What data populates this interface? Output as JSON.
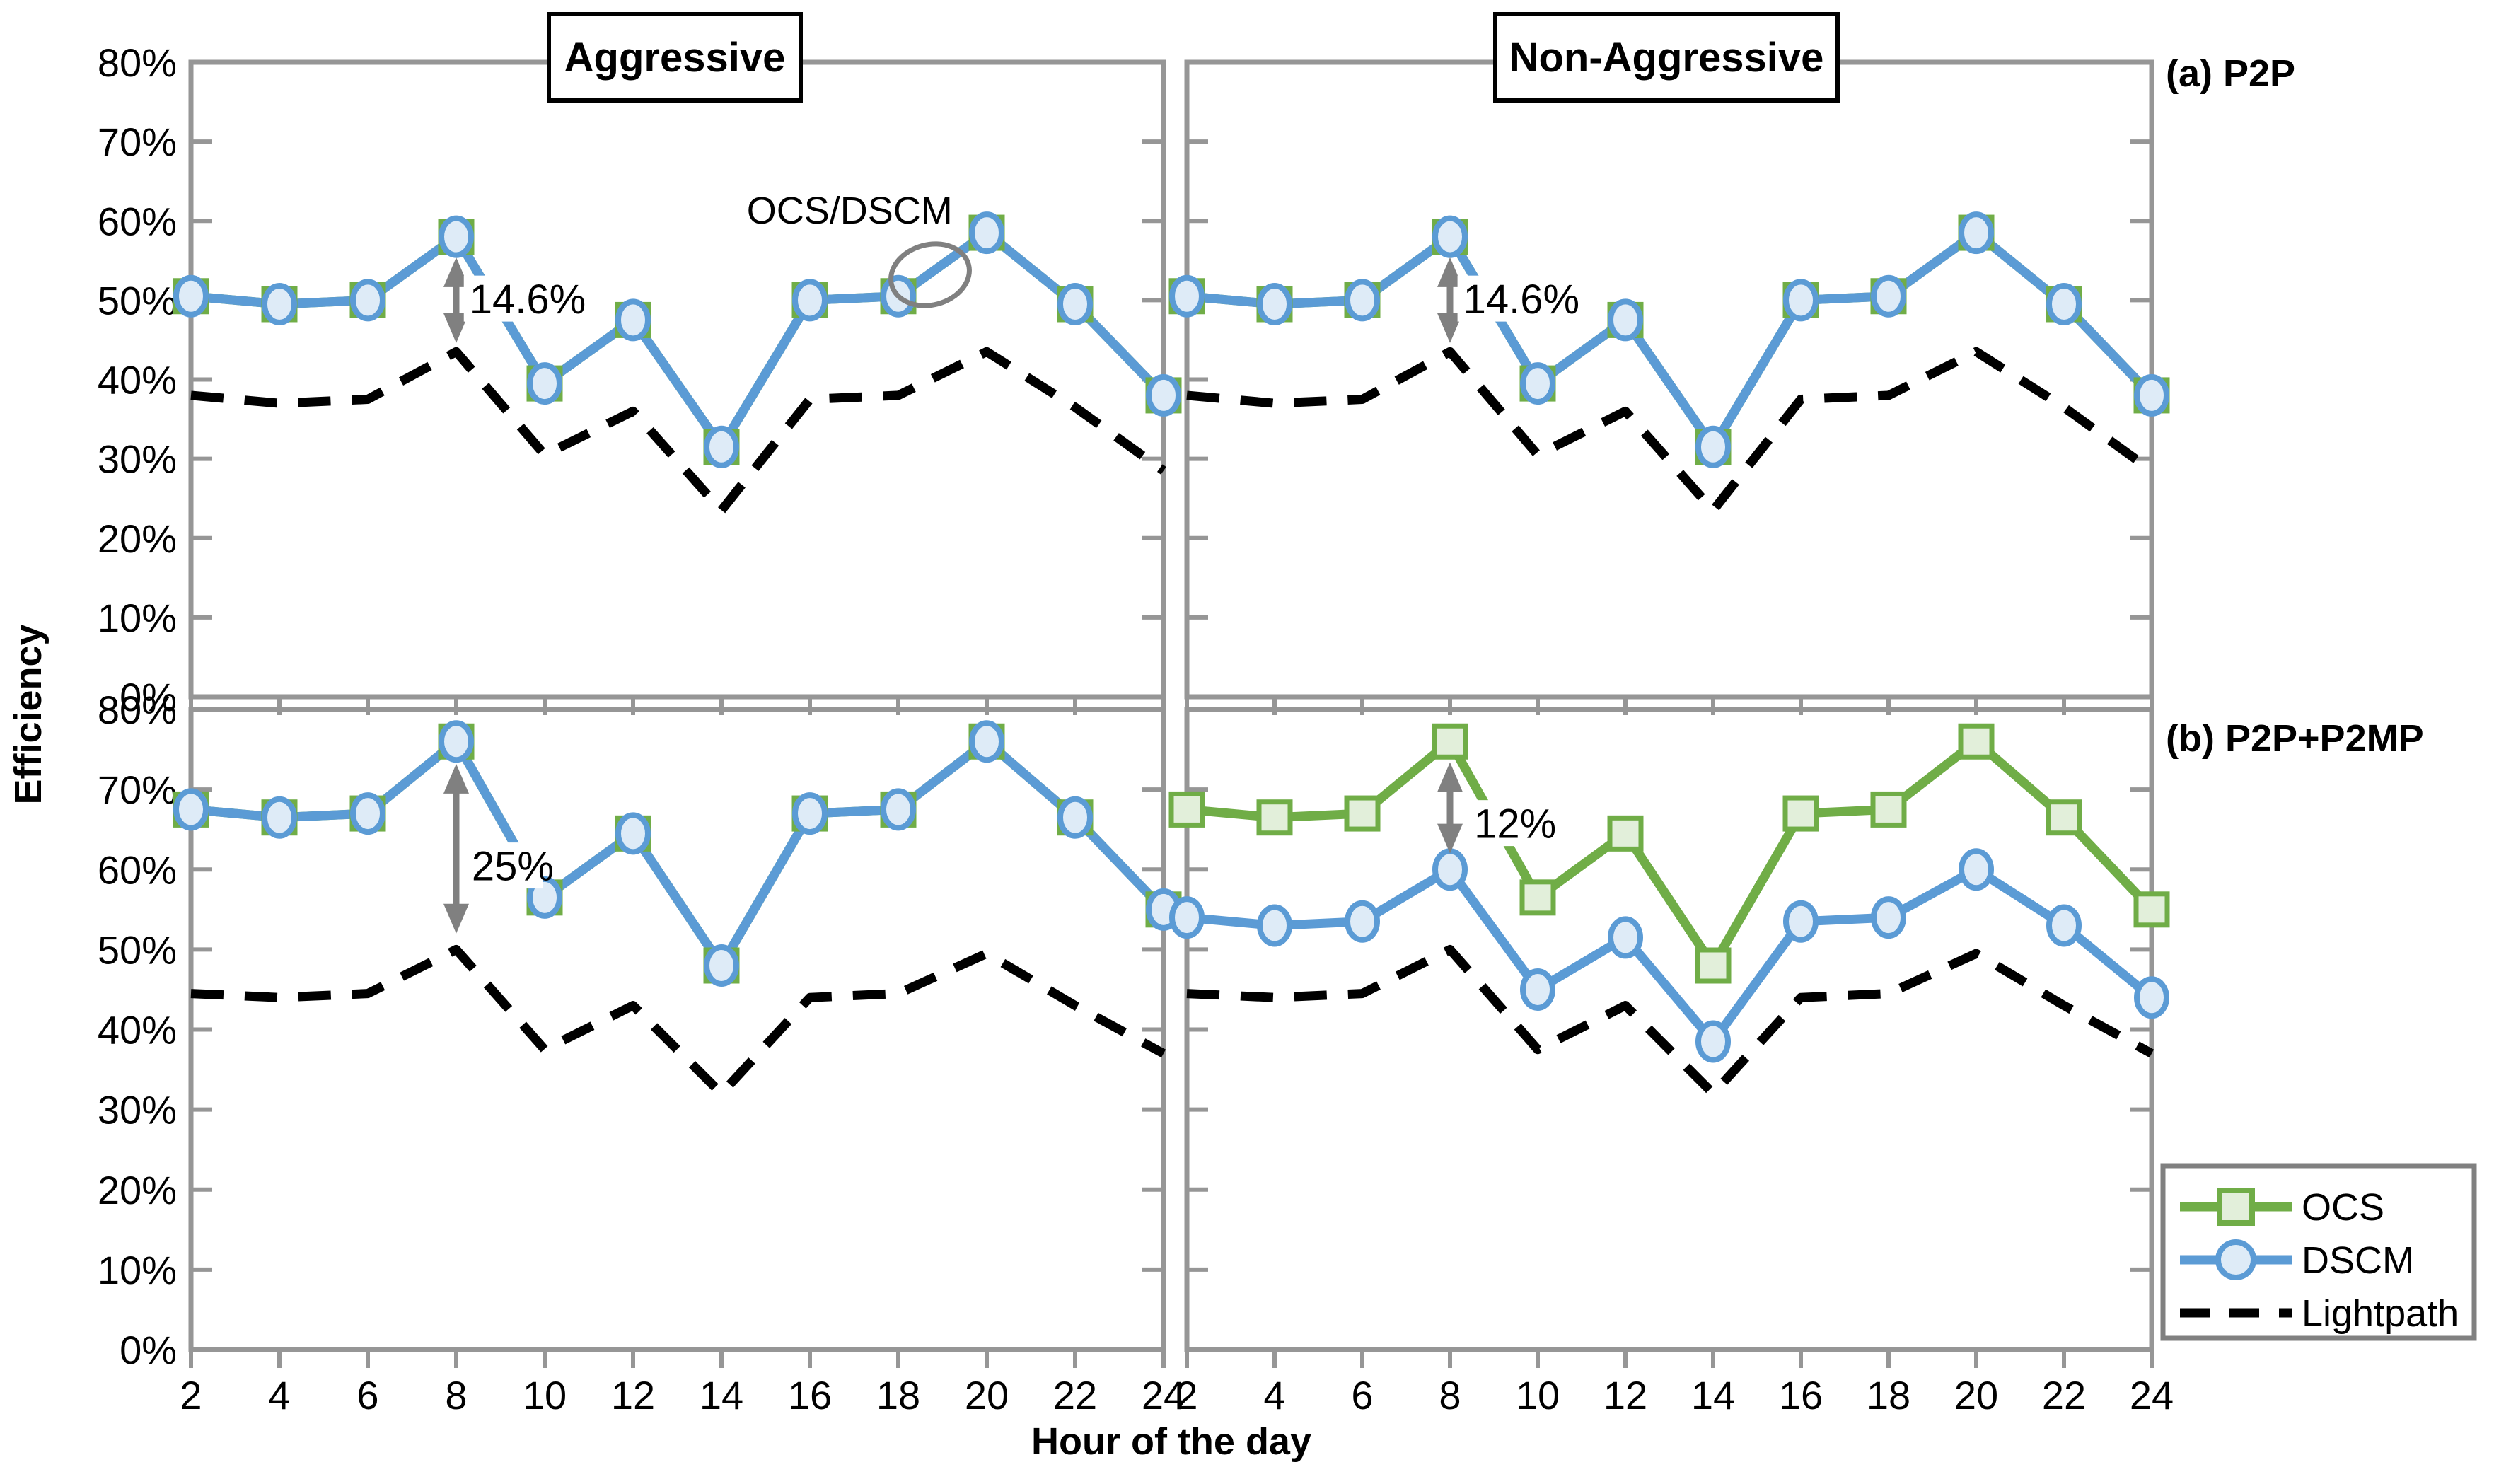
{
  "figure": {
    "ylabel": "Efficiency",
    "xlabel": "Hour of the day",
    "column_titles": [
      "Aggressive",
      "Non-Aggressive"
    ],
    "row_labels": [
      "(a) P2P",
      "(b) P2P+P2MP"
    ]
  },
  "colors": {
    "ocs": "#70AD47",
    "ocs_fill": "#E2EFDA",
    "dscm": "#5B9BD5",
    "dscm_fill": "#DEEBF7",
    "lightpath": "#000000",
    "axis": "#969696",
    "annotation": "#808080"
  },
  "legend": {
    "items": [
      {
        "label": "OCS",
        "marker": "square"
      },
      {
        "label": "DSCM",
        "marker": "circle"
      },
      {
        "label": "Lightpath",
        "marker": "dash"
      }
    ]
  },
  "chart_data": [
    {
      "type": "line",
      "id": "p2p-aggressive",
      "row": 0,
      "col": 0,
      "title": "Aggressive",
      "row_label": "(a) P2P",
      "x": [
        2,
        4,
        6,
        8,
        10,
        12,
        14,
        16,
        18,
        20,
        22,
        24
      ],
      "xlim": [
        2,
        24
      ],
      "ylim": [
        0,
        80
      ],
      "y_tick_labels": [
        "80%",
        "70%",
        "60%",
        "50%",
        "40%",
        "30%",
        "20%",
        "10%",
        "0%"
      ],
      "show_x_labels": false,
      "series": [
        {
          "name": "OCS",
          "marker": "square",
          "dashed": false,
          "values": [
            50.5,
            49.5,
            50,
            58,
            39.5,
            47.5,
            31.5,
            50,
            50.5,
            58.5,
            49.5,
            38
          ]
        },
        {
          "name": "DSCM",
          "marker": "circle",
          "dashed": false,
          "values": [
            50.5,
            49.5,
            50,
            58,
            39.5,
            47.5,
            31.5,
            50,
            50.5,
            58.5,
            49.5,
            38
          ]
        },
        {
          "name": "Lightpath",
          "marker": "none",
          "dashed": true,
          "values": [
            38,
            37,
            37.5,
            43.5,
            30.5,
            36,
            23.5,
            37.5,
            38,
            43.5,
            36.5,
            28.5
          ]
        }
      ],
      "annotations": [
        {
          "type": "vline-arrow",
          "x": 8,
          "from": 55.4,
          "to": 44.6
        },
        {
          "type": "label",
          "x": 8.3,
          "y": 50.2,
          "text": "14.6%",
          "bg": true,
          "anchor": "start",
          "size": 58
        },
        {
          "type": "label",
          "x": 16.9,
          "y": 61.4,
          "text": "OCS/DSCM",
          "bg": false,
          "anchor": "middle",
          "size": 54,
          "color": "#1a1a1a"
        },
        {
          "type": "ellipse",
          "x": 18.72,
          "y": 53.2,
          "rx": 0.45,
          "ry": 3.8,
          "rotate": -15
        }
      ]
    },
    {
      "type": "line",
      "id": "p2p-non-aggressive",
      "row": 0,
      "col": 1,
      "title": "Non-Aggressive",
      "row_label": "(a) P2P",
      "x": [
        2,
        4,
        6,
        8,
        10,
        12,
        14,
        16,
        18,
        20,
        22,
        24
      ],
      "xlim": [
        2,
        24
      ],
      "ylim": [
        0,
        80
      ],
      "y_tick_labels": [
        "80%",
        "70%",
        "60%",
        "50%",
        "40%",
        "30%",
        "20%",
        "10%",
        "0%"
      ],
      "show_x_labels": false,
      "series": [
        {
          "name": "OCS",
          "marker": "square",
          "dashed": false,
          "values": [
            50.5,
            49.5,
            50,
            58,
            39.5,
            47.5,
            31.5,
            50,
            50.5,
            58.5,
            49.5,
            38
          ]
        },
        {
          "name": "DSCM",
          "marker": "circle",
          "dashed": false,
          "values": [
            50.5,
            49.5,
            50,
            58,
            39.5,
            47.5,
            31.5,
            50,
            50.5,
            58.5,
            49.5,
            38
          ]
        },
        {
          "name": "Lightpath",
          "marker": "none",
          "dashed": true,
          "values": [
            38,
            37,
            37.5,
            43.5,
            30.5,
            36,
            23.5,
            37.5,
            38,
            43.5,
            36.5,
            28.5
          ]
        }
      ],
      "annotations": [
        {
          "type": "vline-arrow",
          "x": 8,
          "from": 55.4,
          "to": 44.6
        },
        {
          "type": "label",
          "x": 8.3,
          "y": 50.2,
          "text": "14.6%",
          "bg": true,
          "anchor": "start",
          "size": 58
        }
      ]
    },
    {
      "type": "line",
      "id": "p2p-p2mp-aggressive",
      "row": 1,
      "col": 0,
      "title": "Aggressive",
      "row_label": "(b) P2P+P2MP",
      "x": [
        2,
        4,
        6,
        8,
        10,
        12,
        14,
        16,
        18,
        20,
        22,
        24
      ],
      "xlim": [
        2,
        24
      ],
      "ylim": [
        0,
        80
      ],
      "y_tick_labels": [
        "80%",
        "70%",
        "60%",
        "50%",
        "40%",
        "30%",
        "20%",
        "10%",
        "0%"
      ],
      "show_x_labels": true,
      "series": [
        {
          "name": "OCS",
          "marker": "square",
          "dashed": false,
          "values": [
            67.5,
            66.5,
            67,
            76,
            56.5,
            64.5,
            48,
            67,
            67.5,
            76,
            66.5,
            55
          ]
        },
        {
          "name": "DSCM",
          "marker": "circle",
          "dashed": false,
          "values": [
            67.5,
            66.5,
            67,
            76,
            56.5,
            64.5,
            48,
            67,
            67.5,
            76,
            66.5,
            55
          ]
        },
        {
          "name": "Lightpath",
          "marker": "none",
          "dashed": true,
          "values": [
            44.5,
            44,
            44.5,
            50,
            37.5,
            43,
            32,
            44,
            44.5,
            49.5,
            43,
            37
          ]
        }
      ],
      "annotations": [
        {
          "type": "vline-arrow",
          "x": 8,
          "from": 73.2,
          "to": 52.0
        },
        {
          "type": "label",
          "x": 8.35,
          "y": 60.5,
          "text": "25%",
          "bg": true,
          "anchor": "start",
          "size": 58
        }
      ]
    },
    {
      "type": "line",
      "id": "p2p-p2mp-non-aggressive",
      "row": 1,
      "col": 1,
      "title": "Non-Aggressive",
      "row_label": "(b) P2P+P2MP",
      "x": [
        2,
        4,
        6,
        8,
        10,
        12,
        14,
        16,
        18,
        20,
        22,
        24
      ],
      "xlim": [
        2,
        24
      ],
      "ylim": [
        0,
        80
      ],
      "y_tick_labels": [
        "80%",
        "70%",
        "60%",
        "50%",
        "40%",
        "30%",
        "20%",
        "10%",
        "0%"
      ],
      "show_x_labels": true,
      "series": [
        {
          "name": "OCS",
          "marker": "square",
          "dashed": false,
          "values": [
            67.5,
            66.5,
            67,
            76,
            56.5,
            64.5,
            48,
            67,
            67.5,
            76,
            66.5,
            55
          ]
        },
        {
          "name": "DSCM",
          "marker": "circle",
          "dashed": false,
          "values": [
            54,
            53,
            53.5,
            60,
            45,
            51.5,
            38.5,
            53.5,
            54,
            60,
            53,
            44
          ]
        },
        {
          "name": "Lightpath",
          "marker": "none",
          "dashed": true,
          "values": [
            44.5,
            44,
            44.5,
            50,
            37.5,
            43,
            32,
            44,
            44.5,
            49.5,
            43,
            37
          ]
        }
      ],
      "annotations": [
        {
          "type": "vline-arrow",
          "x": 8,
          "from": 73.4,
          "to": 62.0
        },
        {
          "type": "label",
          "x": 8.55,
          "y": 65.8,
          "text": "12%",
          "bg": true,
          "anchor": "start",
          "size": 58
        }
      ]
    }
  ]
}
